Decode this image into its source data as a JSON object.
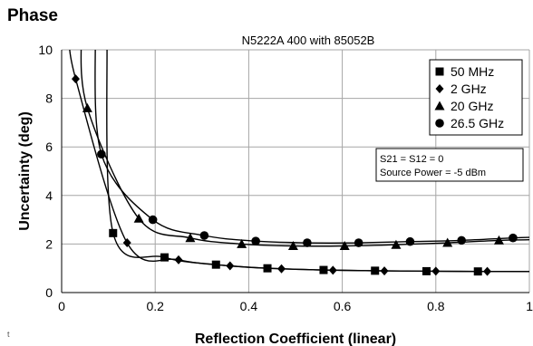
{
  "page": {
    "heading": "Phase",
    "stray_mark": "t"
  },
  "chart_data": {
    "type": "scatter",
    "title": "N5222A 400 with 85052B",
    "xlabel": "Reflection Coefficient (linear)",
    "ylabel": "Uncertainty (deg)",
    "xlim": [
      0,
      1
    ],
    "ylim": [
      0,
      10
    ],
    "xticks": [
      0,
      0.2,
      0.4,
      0.6,
      0.8,
      1
    ],
    "xtick_labels": [
      "0",
      "0.2",
      "0.4",
      "0.6",
      "0.8",
      "1"
    ],
    "yticks": [
      0,
      2,
      4,
      6,
      8,
      10
    ],
    "ytick_labels": [
      "0",
      "2",
      "4",
      "6",
      "8",
      "10"
    ],
    "grid": true,
    "legend_position": "top-right",
    "annotation_lines": [
      "S21 = S12 = 0",
      "Source Power = -5 dBm"
    ],
    "series": [
      {
        "name": "50 MHz",
        "marker": "square",
        "x": [
          0.11,
          0.22,
          0.33,
          0.44,
          0.56,
          0.67,
          0.78,
          0.89
        ],
        "y": [
          2.45,
          1.45,
          1.15,
          1.0,
          0.93,
          0.9,
          0.88,
          0.87
        ]
      },
      {
        "name": "2 GHz",
        "marker": "diamond",
        "x": [
          0.03,
          0.14,
          0.25,
          0.36,
          0.47,
          0.58,
          0.69,
          0.8,
          0.91
        ],
        "y": [
          8.8,
          2.05,
          1.35,
          1.1,
          0.98,
          0.92,
          0.89,
          0.88,
          0.87
        ]
      },
      {
        "name": "20 GHz",
        "marker": "triangle",
        "x": [
          0.055,
          0.165,
          0.275,
          0.385,
          0.495,
          0.605,
          0.715,
          0.825,
          0.935
        ],
        "y": [
          7.6,
          3.05,
          2.25,
          2.0,
          1.92,
          1.92,
          1.97,
          2.05,
          2.15
        ]
      },
      {
        "name": "26.5 GHz",
        "marker": "circle",
        "x": [
          0.085,
          0.195,
          0.305,
          0.415,
          0.525,
          0.635,
          0.745,
          0.855,
          0.965
        ],
        "y": [
          5.7,
          3.0,
          2.35,
          2.12,
          2.05,
          2.05,
          2.1,
          2.15,
          2.25
        ]
      }
    ]
  }
}
